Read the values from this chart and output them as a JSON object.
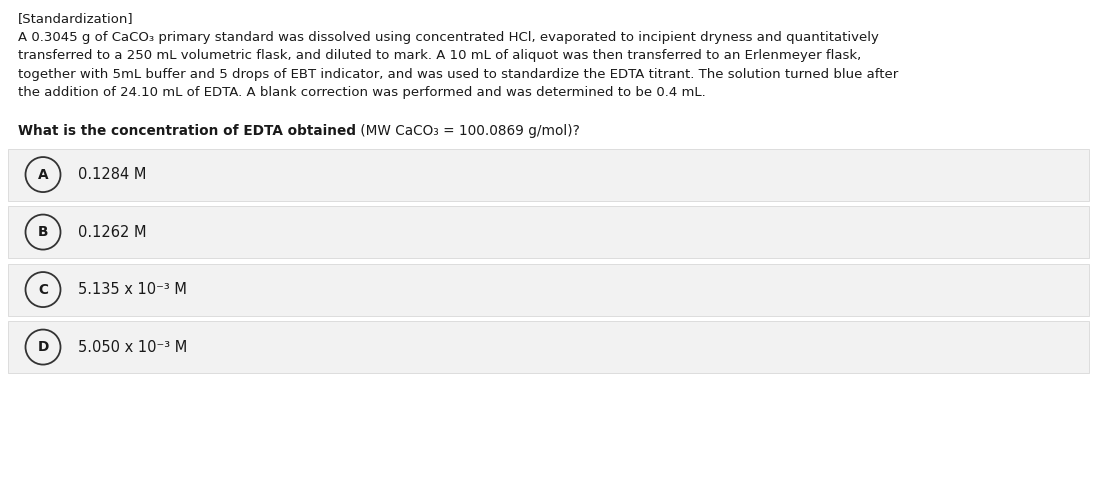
{
  "bg_color": "#ffffff",
  "option_bg_color": "#f2f2f2",
  "option_border_color": "#d8d8d8",
  "text_color": "#1a1a1a",
  "circle_color": "#333333",
  "title_line": "[Standardization]",
  "para_lines": [
    "A 0.3045 g of CaCO₃ primary standard was dissolved using concentrated HCl, evaporated to incipient dryness and quantitatively",
    "transferred to a 250 mL volumetric flask, and diluted to mark. A 10 mL of aliquot was then transferred to an Erlenmeyer flask,",
    "together with 5mL buffer and 5 drops of EBT indicator, and was used to standardize the EDTA titrant. The solution turned blue after",
    "the addition of 24.10 mL of EDTA. A blank correction was performed and was determined to be 0.4 mL."
  ],
  "question_bold": "What is the concentration of EDTA obtained",
  "question_normal": " (MW CaCO₃ = 100.0869 g/mol)?",
  "options": [
    {
      "label": "A",
      "text": "0.1284 M"
    },
    {
      "label": "B",
      "text": "0.1262 M"
    },
    {
      "label": "C",
      "text": "5.135 x 10⁻³ M"
    },
    {
      "label": "D",
      "text": "5.050 x 10⁻³ M"
    }
  ],
  "font_size_title": 9.5,
  "font_size_paragraph": 9.5,
  "font_size_question": 9.8,
  "font_size_option": 10.5,
  "font_size_label": 9.8,
  "fig_width": 10.97,
  "fig_height": 4.84,
  "dpi": 100
}
